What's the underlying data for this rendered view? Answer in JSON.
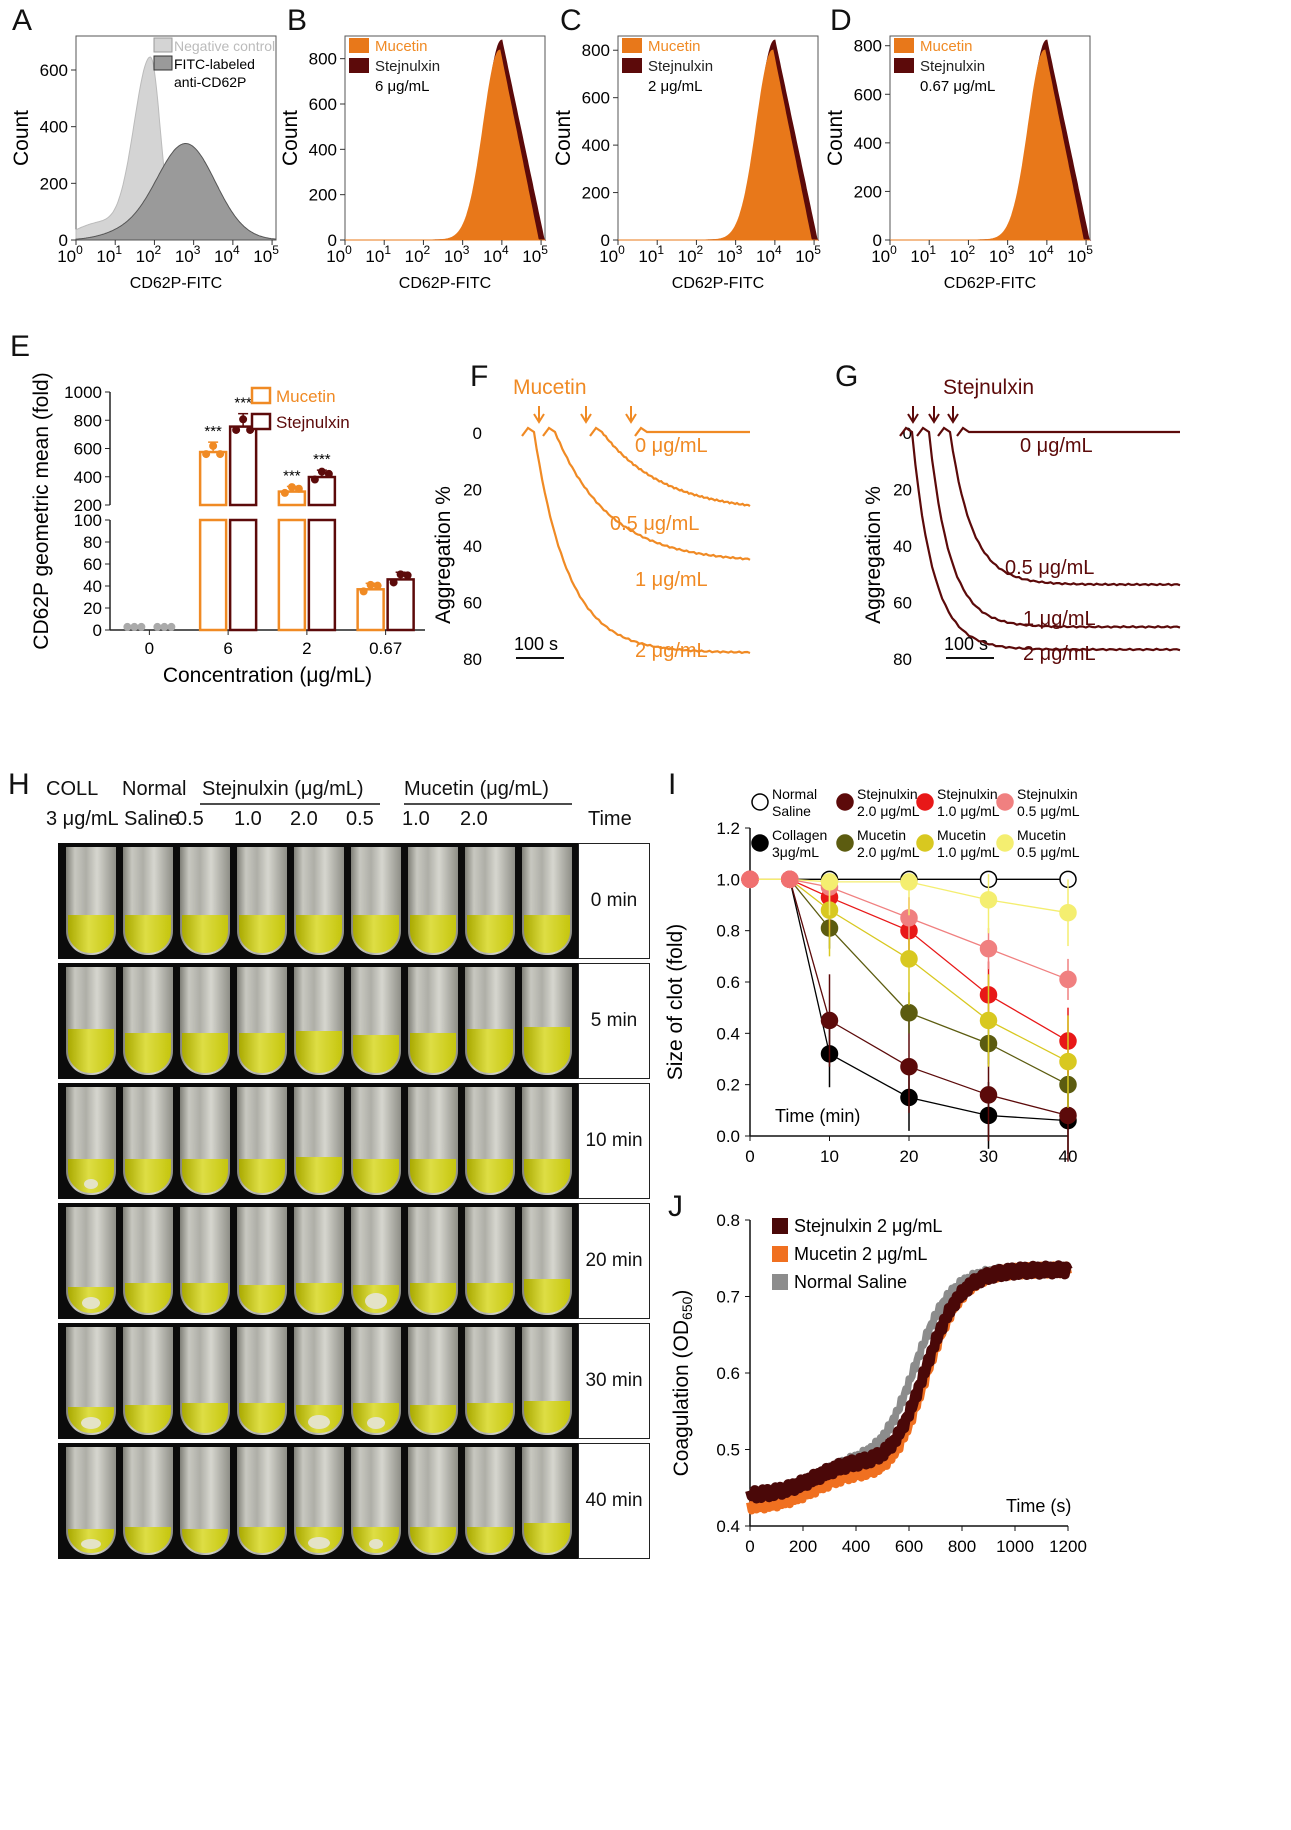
{
  "panels": {
    "A": "A",
    "B": "B",
    "C": "C",
    "D": "D",
    "E": "E",
    "F": "F",
    "G": "G",
    "H": "H",
    "I": "I",
    "J": "J"
  },
  "colors": {
    "mucetin": "#f08a24",
    "stejnulxin": "#5c0a0a",
    "mucetin_fill": "#e8781a",
    "grey_light": "#d4d4d4",
    "grey_dark": "#9a9a9a"
  },
  "flow": {
    "xlabel": "CD62P-FITC",
    "ylabel": "Count",
    "xticks": [
      "10",
      "10",
      "10",
      "10",
      "10",
      "10"
    ],
    "xexp": [
      "0",
      "1",
      "2",
      "3",
      "4",
      "5"
    ],
    "A": {
      "yticks": [
        "0",
        "200",
        "400",
        "600"
      ],
      "legend": [
        "Negative control",
        "FITC-labeled",
        "anti-CD62P"
      ]
    },
    "B": {
      "yticks": [
        "0",
        "200",
        "400",
        "600",
        "800"
      ],
      "legend": [
        "Mucetin",
        "Stejnulxin",
        "6 μg/mL"
      ]
    },
    "C": {
      "yticks": [
        "0",
        "200",
        "400",
        "600",
        "800"
      ],
      "legend": [
        "Mucetin",
        "Stejnulxin",
        "2 μg/mL"
      ]
    },
    "D": {
      "yticks": [
        "0",
        "200",
        "400",
        "600",
        "800"
      ],
      "legend": [
        "Mucetin",
        "Stejnulxin",
        "0.67 μg/mL"
      ]
    }
  },
  "chart_data": [
    {
      "id": "E",
      "type": "bar",
      "categories": [
        "0",
        "6",
        "2",
        "0.67"
      ],
      "series": [
        {
          "name": "Mucetin",
          "values": [
            1,
            575,
            295,
            37
          ]
        },
        {
          "name": "Stejnulxin",
          "values": [
            1,
            755,
            398,
            46
          ]
        }
      ],
      "xlabel": "Concentration (μg/mL)",
      "ylabel": "CD62P geometric mean (fold)",
      "yticks_upper": [
        "200",
        "400",
        "600",
        "800",
        "1000"
      ],
      "yticks_lower": [
        "0",
        "20",
        "40",
        "60",
        "80",
        "100"
      ],
      "stars": [
        "***",
        "***",
        "***",
        "***"
      ]
    },
    {
      "id": "F",
      "type": "line",
      "title": "Mucetin",
      "ylabel": "Aggregation %",
      "yticks": [
        "0",
        "20",
        "40",
        "60",
        "80"
      ],
      "scale": "100 s",
      "series": [
        {
          "name": "0 μg/mL",
          "final": 0
        },
        {
          "name": "0.5 μg/mL",
          "final": 26
        },
        {
          "name": "1 μg/mL",
          "final": 45
        },
        {
          "name": "2 μg/mL",
          "final": 78
        }
      ]
    },
    {
      "id": "G",
      "type": "line",
      "title": "Stejnulxin",
      "ylabel": "Aggregation %",
      "yticks": [
        "0",
        "20",
        "40",
        "60",
        "80"
      ],
      "scale": "100 s",
      "series": [
        {
          "name": "0 μg/mL",
          "final": 0
        },
        {
          "name": "0.5 μg/mL",
          "final": 54
        },
        {
          "name": "1 μg/mL",
          "final": 69
        },
        {
          "name": "2 μg/mL",
          "final": 77
        }
      ]
    },
    {
      "id": "I",
      "type": "line",
      "x": [
        0,
        5,
        10,
        20,
        30,
        40
      ],
      "xticks": [
        "0",
        "10",
        "20",
        "30",
        "40"
      ],
      "yticks": [
        "0.0",
        "0.2",
        "0.4",
        "0.6",
        "0.8",
        "1.0",
        "1.2"
      ],
      "ylim": [
        0,
        1.2
      ],
      "xlabel": "Time (min)",
      "ylabel": "Size of clot (fold)",
      "series": [
        {
          "name": "Normal Saline",
          "values": [
            1,
            1,
            1,
            1,
            1,
            1
          ]
        },
        {
          "name": "Collagen 3μg/mL",
          "values": [
            1,
            1,
            0.32,
            0.15,
            0.08,
            0.06
          ]
        },
        {
          "name": "Stejnulxin 2.0 μg/mL",
          "values": [
            1,
            1,
            0.45,
            0.27,
            0.16,
            0.08
          ]
        },
        {
          "name": "Mucetin 2.0 μg/mL",
          "values": [
            1,
            1,
            0.81,
            0.48,
            0.36,
            0.2
          ]
        },
        {
          "name": "Stejnulxin 1.0 μg/mL",
          "values": [
            1,
            1,
            0.93,
            0.8,
            0.55,
            0.37
          ]
        },
        {
          "name": "Mucetin 1.0 μg/mL",
          "values": [
            1,
            1,
            0.88,
            0.69,
            0.45,
            0.29
          ]
        },
        {
          "name": "Stejnulxin 0.5 μg/mL",
          "values": [
            1,
            1,
            0.97,
            0.85,
            0.73,
            0.61
          ]
        },
        {
          "name": "Mucetin 0.5 μg/mL",
          "values": [
            1,
            1,
            0.99,
            0.99,
            0.92,
            0.87
          ]
        }
      ],
      "legend": [
        {
          "l1": "Normal",
          "l2": "Saline"
        },
        {
          "l1": "Stejnulxin",
          "l2": "2.0 μg/mL"
        },
        {
          "l1": "Stejnulxin",
          "l2": "1.0 μg/mL"
        },
        {
          "l1": "Stejnulxin",
          "l2": "0.5 μg/mL"
        },
        {
          "l1": "Collagen",
          "l2": "3μg/mL"
        },
        {
          "l1": "Mucetin",
          "l2": "2.0 μg/mL"
        },
        {
          "l1": "Mucetin",
          "l2": "1.0 μg/mL"
        },
        {
          "l1": "Mucetin",
          "l2": "0.5 μg/mL"
        }
      ]
    },
    {
      "id": "J",
      "type": "line",
      "xticks": [
        "0",
        "200",
        "400",
        "600",
        "800",
        "1000",
        "1200"
      ],
      "yticks": [
        "0.4",
        "0.5",
        "0.6",
        "0.7",
        "0.8"
      ],
      "ylim": [
        0.4,
        0.8
      ],
      "xlim": [
        0,
        1200
      ],
      "xlabel": "Time (s)",
      "ylabel": "Coagulation (OD",
      "ylabel_sub": "650",
      "ylabel_end": ")",
      "series": [
        {
          "name": "Stejnulxin 2 μg/mL"
        },
        {
          "name": "Mucetin 2 μg/mL"
        },
        {
          "name": "Normal Saline"
        }
      ]
    }
  ],
  "H": {
    "header": {
      "coll": "COLL",
      "coll_conc": "3 μg/mL",
      "normal": "Normal",
      "saline": "Saline",
      "stej": "Stejnulxin (μg/mL)",
      "muc": "Mucetin (μg/mL)",
      "time": "Time",
      "concs": [
        "0.5",
        "1.0",
        "2.0",
        "0.5",
        "1.0",
        "2.0"
      ]
    },
    "rows": [
      "0 min",
      "5 min",
      "10 min",
      "20 min",
      "30 min",
      "40 min"
    ]
  }
}
